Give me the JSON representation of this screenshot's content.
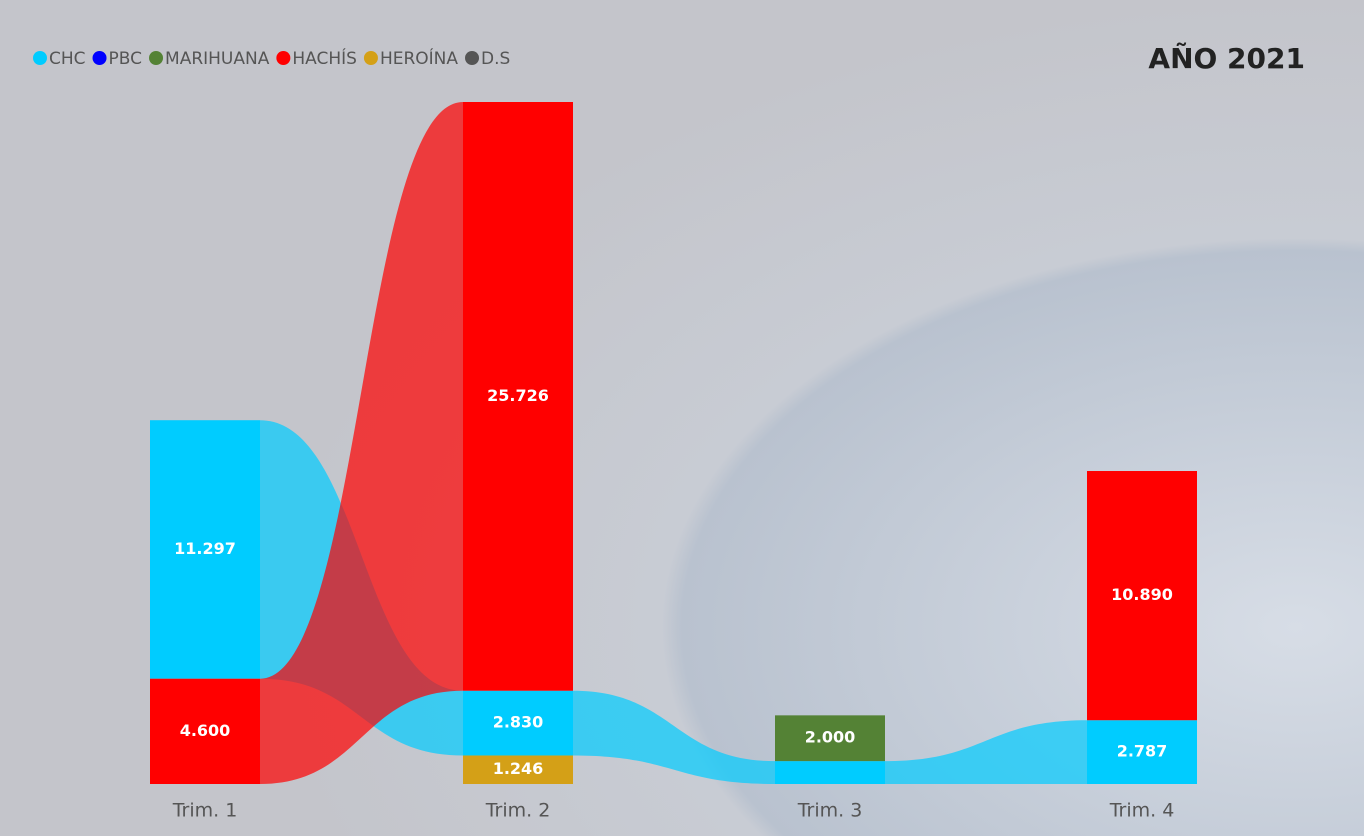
{
  "chart_data": {
    "type": "ribbon",
    "title": "AÑO 2021",
    "categories": [
      "Trim. 1",
      "Trim. 2",
      "Trim. 3",
      "Trim. 4"
    ],
    "series": [
      {
        "name": "CHC",
        "color": "#00ccff",
        "values": [
          11297,
          2830,
          1000,
          2787
        ],
        "value_labels": [
          "11.297",
          "2.830",
          null,
          "2.787"
        ]
      },
      {
        "name": "PBC",
        "color": "#0000ff",
        "values": [
          null,
          null,
          null,
          null
        ]
      },
      {
        "name": "MARIHUANA",
        "color": "#548235",
        "values": [
          null,
          null,
          2000,
          null
        ],
        "value_labels": [
          null,
          null,
          "2.000",
          null
        ]
      },
      {
        "name": "HACHÍS",
        "color": "#ff0000",
        "values": [
          4600,
          25726,
          null,
          10890
        ],
        "value_labels": [
          "4.600",
          "25.726",
          null,
          "10.890"
        ]
      },
      {
        "name": "HEROÍNA",
        "color": "#d4a017",
        "values": [
          null,
          1246,
          null,
          null
        ],
        "value_labels": [
          null,
          "1.246",
          null,
          null
        ]
      },
      {
        "name": "D.S",
        "color": "#555555",
        "values": [
          null,
          null,
          null,
          null
        ]
      }
    ],
    "legend": "top-left"
  }
}
